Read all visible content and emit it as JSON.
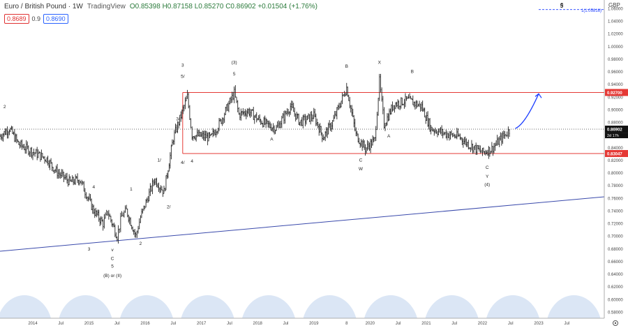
{
  "header": {
    "symbol": "Euro / British Pound · 1W",
    "brand": "TradingView",
    "ohlc": "O0.85398 H0.87158 L0.85270 C0.86902 +0.01504 (+1.76%)",
    "sell": "0.8689",
    "spread": "0.9",
    "buy": "0.8690",
    "currency": "GBP"
  },
  "corner_label": "5",
  "corner_price_label": "1(1.05816)",
  "colors": {
    "candles": "#222222",
    "support": "#e53935",
    "trend": "#3949ab",
    "arrow": "#1e3fff",
    "wave": "#dbe6f5",
    "price_tag": "#111111"
  },
  "chart_data": {
    "type": "line",
    "title": "",
    "xlabel": "",
    "ylabel": "",
    "x_range": [
      "2013-06",
      "2024-03"
    ],
    "ylim": [
      0.57,
      1.06
    ],
    "y_ticks": [
      "1.06000",
      "1.04000",
      "1.02000",
      "1.00000",
      "0.98000",
      "0.96000",
      "0.94000",
      "0.92000",
      "0.90000",
      "0.88000",
      "0.86000",
      "0.84000",
      "0.82000",
      "0.80000",
      "0.78000",
      "0.76000",
      "0.74000",
      "0.72000",
      "0.70000",
      "0.68000",
      "0.66000",
      "0.64000",
      "0.62000",
      "0.60000",
      "0.58000"
    ],
    "x_ticks": [
      {
        "label": "2014",
        "x": "2014-01"
      },
      {
        "label": "Jul",
        "x": "2014-07"
      },
      {
        "label": "2015",
        "x": "2015-01"
      },
      {
        "label": "Jul",
        "x": "2015-07"
      },
      {
        "label": "2016",
        "x": "2016-01"
      },
      {
        "label": "Jul",
        "x": "2016-07"
      },
      {
        "label": "2017",
        "x": "2017-01"
      },
      {
        "label": "Jul",
        "x": "2017-07"
      },
      {
        "label": "2018",
        "x": "2018-01"
      },
      {
        "label": "Jul",
        "x": "2018-07"
      },
      {
        "label": "2019",
        "x": "2019-01"
      },
      {
        "label": "8",
        "x": "2019-08"
      },
      {
        "label": "2020",
        "x": "2020-01"
      },
      {
        "label": "Jul",
        "x": "2020-07"
      },
      {
        "label": "2021",
        "x": "2021-01"
      },
      {
        "label": "Jul",
        "x": "2021-07"
      },
      {
        "label": "2022",
        "x": "2022-01"
      },
      {
        "label": "Jul",
        "x": "2022-07"
      },
      {
        "label": "2023",
        "x": "2023-01"
      },
      {
        "label": "Jul",
        "x": "2023-07"
      }
    ],
    "series": [
      {
        "type": "ohlc-approx",
        "points": [
          [
            "2013-06",
            0.858
          ],
          [
            "2013-08",
            0.87
          ],
          [
            "2013-10",
            0.845
          ],
          [
            "2014-01",
            0.833
          ],
          [
            "2014-04",
            0.822
          ],
          [
            "2014-06",
            0.802
          ],
          [
            "2014-09",
            0.785
          ],
          [
            "2014-11",
            0.79
          ],
          [
            "2015-02",
            0.74
          ],
          [
            "2015-04",
            0.72
          ],
          [
            "2015-05",
            0.738
          ],
          [
            "2015-07",
            0.7
          ],
          [
            "2015-08",
            0.732
          ],
          [
            "2015-09",
            0.74
          ],
          [
            "2015-11",
            0.7
          ],
          [
            "2015-12",
            0.73
          ],
          [
            "2016-03",
            0.79
          ],
          [
            "2016-05",
            0.77
          ],
          [
            "2016-07",
            0.855
          ],
          [
            "2016-10",
            0.92
          ],
          [
            "2016-11",
            0.86
          ],
          [
            "2017-01",
            0.858
          ],
          [
            "2017-03",
            0.855
          ],
          [
            "2017-05",
            0.88
          ],
          [
            "2017-08",
            0.926
          ],
          [
            "2017-09",
            0.892
          ],
          [
            "2017-11",
            0.898
          ],
          [
            "2018-01",
            0.885
          ],
          [
            "2018-03",
            0.876
          ],
          [
            "2018-05",
            0.87
          ],
          [
            "2018-08",
            0.905
          ],
          [
            "2018-10",
            0.88
          ],
          [
            "2019-01",
            0.89
          ],
          [
            "2019-03",
            0.856
          ],
          [
            "2019-05",
            0.88
          ],
          [
            "2019-08",
            0.935
          ],
          [
            "2019-10",
            0.86
          ],
          [
            "2019-12",
            0.838
          ],
          [
            "2020-02",
            0.852
          ],
          [
            "2020-03",
            0.945
          ],
          [
            "2020-04",
            0.876
          ],
          [
            "2020-06",
            0.908
          ],
          [
            "2020-09",
            0.915
          ],
          [
            "2020-12",
            0.905
          ],
          [
            "2021-02",
            0.87
          ],
          [
            "2021-05",
            0.862
          ],
          [
            "2021-08",
            0.857
          ],
          [
            "2021-10",
            0.845
          ],
          [
            "2022-01",
            0.832
          ],
          [
            "2022-03",
            0.838
          ],
          [
            "2022-06",
            0.862
          ],
          [
            "2022-07",
            0.869
          ]
        ]
      }
    ],
    "horizontal_levels": [
      {
        "value": 0.927,
        "label": "0.92700"
      },
      {
        "value": 0.83047,
        "label": "0.83047"
      }
    ],
    "current_price": {
      "value": 0.86902,
      "label": "0.86902",
      "countdown": "2d 17h"
    },
    "projection_target": 1.05816,
    "trendline": {
      "from": [
        "2013-06",
        0.676
      ],
      "to": [
        "2024-03",
        0.762
      ]
    },
    "wave_labels": [
      {
        "text": "2",
        "x": "2013-07",
        "y": 0.902
      },
      {
        "text": "4",
        "x": "2015-02",
        "y": 0.775
      },
      {
        "text": "1",
        "x": "2015-10",
        "y": 0.772
      },
      {
        "text": "3",
        "x": "2015-01",
        "y": 0.677
      },
      {
        "text": "v",
        "x": "2015-06",
        "y": 0.676
      },
      {
        "text": "C",
        "x": "2015-06",
        "y": 0.662
      },
      {
        "text": "5",
        "x": "2015-06",
        "y": 0.65
      },
      {
        "text": "(B) or (II)",
        "x": "2015-06",
        "y": 0.635
      },
      {
        "text": "2",
        "x": "2015-12",
        "y": 0.686
      },
      {
        "text": "1/",
        "x": "2016-04",
        "y": 0.818
      },
      {
        "text": "2/",
        "x": "2016-06",
        "y": 0.744
      },
      {
        "text": "3/",
        "x": "2016-08",
        "y": 0.883
      },
      {
        "text": "3",
        "x": "2016-09",
        "y": 0.968
      },
      {
        "text": "5/",
        "x": "2016-09",
        "y": 0.95
      },
      {
        "text": "4/",
        "x": "2016-09",
        "y": 0.814
      },
      {
        "text": "4",
        "x": "2016-11",
        "y": 0.816
      },
      {
        "text": "(3)",
        "x": "2017-08",
        "y": 0.972
      },
      {
        "text": "5",
        "x": "2017-08",
        "y": 0.954
      },
      {
        "text": "A",
        "x": "2018-04",
        "y": 0.851
      },
      {
        "text": "B",
        "x": "2019-08",
        "y": 0.966
      },
      {
        "text": "C",
        "x": "2019-11",
        "y": 0.818
      },
      {
        "text": "W",
        "x": "2019-11",
        "y": 0.804
      },
      {
        "text": "X",
        "x": "2020-03",
        "y": 0.972
      },
      {
        "text": "A",
        "x": "2020-05",
        "y": 0.856
      },
      {
        "text": "B",
        "x": "2020-10",
        "y": 0.958
      },
      {
        "text": "C",
        "x": "2022-02",
        "y": 0.806
      },
      {
        "text": "Y",
        "x": "2022-02",
        "y": 0.792
      },
      {
        "text": "(4)",
        "x": "2022-02",
        "y": 0.779
      },
      {
        "text": "5",
        "x": "2023-06",
        "y": 1.064
      }
    ]
  }
}
